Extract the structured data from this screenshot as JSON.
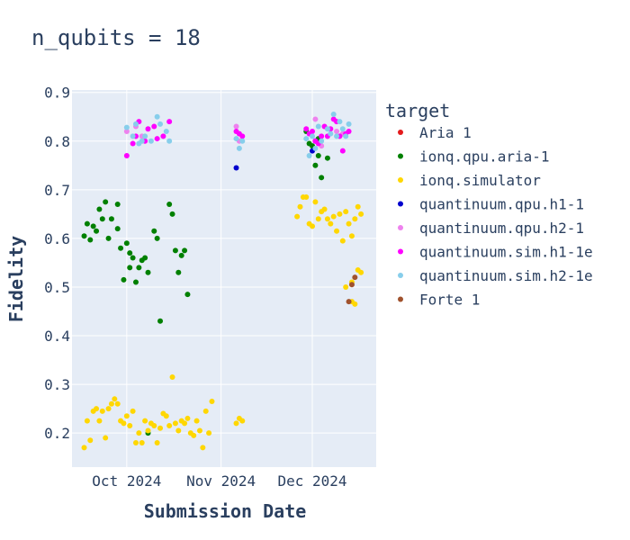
{
  "chart_data": {
    "type": "scatter",
    "title": "n_qubits = 18",
    "xlabel": "Submission Date",
    "ylabel": "Fidelity",
    "xlim": [
      "2024-09-13",
      "2024-12-22"
    ],
    "ylim": [
      0.13,
      0.905
    ],
    "x_ticks": [
      {
        "date": "2024-10-01",
        "label": "Oct 2024"
      },
      {
        "date": "2024-11-01",
        "label": "Nov 2024"
      },
      {
        "date": "2024-12-01",
        "label": "Dec 2024"
      }
    ],
    "y_ticks": [
      0.2,
      0.3,
      0.4,
      0.5,
      0.6,
      0.7,
      0.8,
      0.9
    ],
    "grid": true,
    "legend_title": "target",
    "legend_position": "right",
    "series": [
      {
        "name": "Aria 1",
        "color": "#e41a1c",
        "points": []
      },
      {
        "name": "ionq.qpu.aria-1",
        "color": "#008000",
        "points": [
          [
            "2024-09-17",
            0.605
          ],
          [
            "2024-09-18",
            0.63
          ],
          [
            "2024-09-19",
            0.597
          ],
          [
            "2024-09-20",
            0.625
          ],
          [
            "2024-09-21",
            0.615
          ],
          [
            "2024-09-22",
            0.66
          ],
          [
            "2024-09-23",
            0.64
          ],
          [
            "2024-09-24",
            0.675
          ],
          [
            "2024-09-25",
            0.6
          ],
          [
            "2024-09-26",
            0.64
          ],
          [
            "2024-09-28",
            0.67
          ],
          [
            "2024-09-28",
            0.62
          ],
          [
            "2024-09-29",
            0.58
          ],
          [
            "2024-09-30",
            0.515
          ],
          [
            "2024-10-01",
            0.59
          ],
          [
            "2024-10-02",
            0.57
          ],
          [
            "2024-10-02",
            0.54
          ],
          [
            "2024-10-03",
            0.56
          ],
          [
            "2024-10-04",
            0.51
          ],
          [
            "2024-10-05",
            0.54
          ],
          [
            "2024-10-06",
            0.555
          ],
          [
            "2024-10-07",
            0.56
          ],
          [
            "2024-10-08",
            0.53
          ],
          [
            "2024-10-10",
            0.615
          ],
          [
            "2024-10-11",
            0.6
          ],
          [
            "2024-10-12",
            0.43
          ],
          [
            "2024-10-15",
            0.67
          ],
          [
            "2024-10-16",
            0.65
          ],
          [
            "2024-10-17",
            0.575
          ],
          [
            "2024-10-18",
            0.53
          ],
          [
            "2024-10-19",
            0.565
          ],
          [
            "2024-10-20",
            0.575
          ],
          [
            "2024-10-21",
            0.485
          ],
          [
            "2024-11-29",
            0.82
          ],
          [
            "2024-11-30",
            0.795
          ],
          [
            "2024-12-01",
            0.79
          ],
          [
            "2024-12-02",
            0.75
          ],
          [
            "2024-12-03",
            0.77
          ],
          [
            "2024-12-04",
            0.725
          ],
          [
            "2024-12-06",
            0.765
          ],
          [
            "2024-12-03",
            0.805
          ],
          [
            "2024-10-08",
            0.2
          ]
        ]
      },
      {
        "name": "ionq.simulator",
        "color": "#ffd700",
        "points": [
          [
            "2024-09-17",
            0.17
          ],
          [
            "2024-09-18",
            0.225
          ],
          [
            "2024-09-19",
            0.185
          ],
          [
            "2024-09-20",
            0.245
          ],
          [
            "2024-09-21",
            0.25
          ],
          [
            "2024-09-22",
            0.225
          ],
          [
            "2024-09-23",
            0.245
          ],
          [
            "2024-09-24",
            0.19
          ],
          [
            "2024-09-25",
            0.25
          ],
          [
            "2024-09-26",
            0.26
          ],
          [
            "2024-09-27",
            0.27
          ],
          [
            "2024-09-28",
            0.26
          ],
          [
            "2024-09-29",
            0.225
          ],
          [
            "2024-09-30",
            0.22
          ],
          [
            "2024-10-01",
            0.235
          ],
          [
            "2024-10-02",
            0.215
          ],
          [
            "2024-10-03",
            0.245
          ],
          [
            "2024-10-04",
            0.18
          ],
          [
            "2024-10-05",
            0.2
          ],
          [
            "2024-10-06",
            0.18
          ],
          [
            "2024-10-07",
            0.225
          ],
          [
            "2024-10-08",
            0.205
          ],
          [
            "2024-10-09",
            0.22
          ],
          [
            "2024-10-10",
            0.215
          ],
          [
            "2024-10-11",
            0.18
          ],
          [
            "2024-10-12",
            0.21
          ],
          [
            "2024-10-13",
            0.24
          ],
          [
            "2024-10-14",
            0.235
          ],
          [
            "2024-10-15",
            0.215
          ],
          [
            "2024-10-16",
            0.315
          ],
          [
            "2024-10-17",
            0.22
          ],
          [
            "2024-10-18",
            0.205
          ],
          [
            "2024-10-19",
            0.225
          ],
          [
            "2024-10-20",
            0.22
          ],
          [
            "2024-10-21",
            0.23
          ],
          [
            "2024-10-22",
            0.2
          ],
          [
            "2024-10-23",
            0.195
          ],
          [
            "2024-10-24",
            0.225
          ],
          [
            "2024-10-25",
            0.205
          ],
          [
            "2024-10-26",
            0.17
          ],
          [
            "2024-10-27",
            0.245
          ],
          [
            "2024-10-28",
            0.2
          ],
          [
            "2024-10-29",
            0.265
          ],
          [
            "2024-11-06",
            0.22
          ],
          [
            "2024-11-07",
            0.23
          ],
          [
            "2024-11-08",
            0.225
          ],
          [
            "2024-11-26",
            0.645
          ],
          [
            "2024-11-27",
            0.665
          ],
          [
            "2024-11-28",
            0.685
          ],
          [
            "2024-11-29",
            0.685
          ],
          [
            "2024-11-30",
            0.63
          ],
          [
            "2024-12-01",
            0.625
          ],
          [
            "2024-12-02",
            0.675
          ],
          [
            "2024-12-03",
            0.64
          ],
          [
            "2024-12-04",
            0.655
          ],
          [
            "2024-12-05",
            0.66
          ],
          [
            "2024-12-06",
            0.64
          ],
          [
            "2024-12-07",
            0.63
          ],
          [
            "2024-12-08",
            0.645
          ],
          [
            "2024-12-09",
            0.615
          ],
          [
            "2024-12-10",
            0.65
          ],
          [
            "2024-12-11",
            0.595
          ],
          [
            "2024-12-12",
            0.655
          ],
          [
            "2024-12-13",
            0.63
          ],
          [
            "2024-12-14",
            0.605
          ],
          [
            "2024-12-15",
            0.64
          ],
          [
            "2024-12-16",
            0.665
          ],
          [
            "2024-12-17",
            0.65
          ],
          [
            "2024-12-12",
            0.5
          ],
          [
            "2024-12-14",
            0.47
          ],
          [
            "2024-12-15",
            0.465
          ],
          [
            "2024-12-16",
            0.535
          ],
          [
            "2024-12-17",
            0.53
          ],
          [
            "2024-12-14",
            0.51
          ]
        ]
      },
      {
        "name": "quantinuum.qpu.h1-1",
        "color": "#0000cd",
        "points": [
          [
            "2024-11-06",
            0.745
          ],
          [
            "2024-12-01",
            0.78
          ],
          [
            "2024-12-02",
            0.8
          ]
        ]
      },
      {
        "name": "quantinuum.qpu.h2-1",
        "color": "#ee82ee",
        "points": [
          [
            "2024-10-01",
            0.82
          ],
          [
            "2024-10-04",
            0.83
          ],
          [
            "2024-10-06",
            0.81
          ],
          [
            "2024-11-06",
            0.83
          ],
          [
            "2024-11-07",
            0.8
          ],
          [
            "2024-12-02",
            0.845
          ],
          [
            "2024-12-04",
            0.79
          ],
          [
            "2024-12-09",
            0.82
          ],
          [
            "2024-12-11",
            0.815
          ]
        ]
      },
      {
        "name": "quantinuum.sim.h1-1e",
        "color": "#ff00ff",
        "points": [
          [
            "2024-10-01",
            0.77
          ],
          [
            "2024-10-03",
            0.795
          ],
          [
            "2024-10-04",
            0.81
          ],
          [
            "2024-10-05",
            0.84
          ],
          [
            "2024-10-07",
            0.8
          ],
          [
            "2024-10-08",
            0.825
          ],
          [
            "2024-10-10",
            0.83
          ],
          [
            "2024-10-11",
            0.805
          ],
          [
            "2024-10-13",
            0.81
          ],
          [
            "2024-10-15",
            0.84
          ],
          [
            "2024-11-06",
            0.82
          ],
          [
            "2024-11-07",
            0.815
          ],
          [
            "2024-11-08",
            0.81
          ],
          [
            "2024-11-29",
            0.825
          ],
          [
            "2024-11-30",
            0.815
          ],
          [
            "2024-12-01",
            0.82
          ],
          [
            "2024-12-02",
            0.8
          ],
          [
            "2024-12-03",
            0.795
          ],
          [
            "2024-12-04",
            0.81
          ],
          [
            "2024-12-05",
            0.83
          ],
          [
            "2024-12-06",
            0.81
          ],
          [
            "2024-12-07",
            0.825
          ],
          [
            "2024-12-08",
            0.845
          ],
          [
            "2024-12-09",
            0.84
          ],
          [
            "2024-12-10",
            0.81
          ],
          [
            "2024-12-11",
            0.78
          ],
          [
            "2024-12-12",
            0.815
          ],
          [
            "2024-12-13",
            0.82
          ]
        ]
      },
      {
        "name": "quantinuum.sim.h2-1e",
        "color": "#87ceeb",
        "points": [
          [
            "2024-10-01",
            0.828
          ],
          [
            "2024-10-03",
            0.81
          ],
          [
            "2024-10-04",
            0.835
          ],
          [
            "2024-10-05",
            0.795
          ],
          [
            "2024-10-06",
            0.8
          ],
          [
            "2024-10-07",
            0.81
          ],
          [
            "2024-10-09",
            0.8
          ],
          [
            "2024-10-11",
            0.85
          ],
          [
            "2024-10-12",
            0.835
          ],
          [
            "2024-10-14",
            0.82
          ],
          [
            "2024-10-15",
            0.8
          ],
          [
            "2024-11-06",
            0.805
          ],
          [
            "2024-11-07",
            0.785
          ],
          [
            "2024-11-08",
            0.8
          ],
          [
            "2024-11-29",
            0.805
          ],
          [
            "2024-11-30",
            0.77
          ],
          [
            "2024-12-01",
            0.81
          ],
          [
            "2024-12-02",
            0.785
          ],
          [
            "2024-12-03",
            0.83
          ],
          [
            "2024-12-04",
            0.8
          ],
          [
            "2024-12-06",
            0.825
          ],
          [
            "2024-12-07",
            0.815
          ],
          [
            "2024-12-08",
            0.855
          ],
          [
            "2024-12-09",
            0.81
          ],
          [
            "2024-12-10",
            0.84
          ],
          [
            "2024-12-11",
            0.825
          ],
          [
            "2024-12-12",
            0.81
          ],
          [
            "2024-12-13",
            0.835
          ]
        ]
      },
      {
        "name": "Forte 1",
        "color": "#a0522d",
        "points": [
          [
            "2024-12-13",
            0.47
          ],
          [
            "2024-12-14",
            0.505
          ],
          [
            "2024-12-15",
            0.52
          ]
        ]
      }
    ]
  }
}
